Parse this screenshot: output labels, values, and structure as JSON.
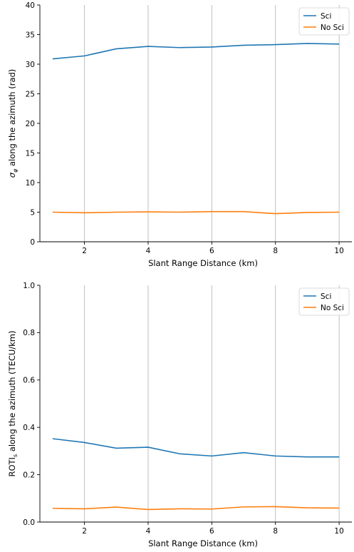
{
  "chart_data": [
    {
      "type": "line",
      "title": "",
      "xlabel": "Slant Range Distance (km)",
      "ylabel_prefix": "σ",
      "ylabel_subscript": "φ",
      "ylabel_rest": " along the azimuth (rad)",
      "xlim": [
        0.6,
        10.4
      ],
      "ylim": [
        0,
        40
      ],
      "xticks": [
        2,
        4,
        6,
        8,
        10
      ],
      "yticks": [
        0,
        5,
        10,
        15,
        20,
        25,
        30,
        35,
        40
      ],
      "grid": "x",
      "legend_position": "top-right",
      "x": [
        1,
        2,
        3,
        4,
        5,
        6,
        7,
        8,
        9,
        10
      ],
      "series": [
        {
          "name": "Sci",
          "color": "#1f77b4",
          "values": [
            30.9,
            31.4,
            32.6,
            33.0,
            32.8,
            32.9,
            33.2,
            33.3,
            33.5,
            33.4
          ]
        },
        {
          "name": "No Sci",
          "color": "#ff7f0e",
          "values": [
            5.0,
            4.9,
            5.0,
            5.05,
            5.0,
            5.1,
            5.1,
            4.75,
            4.95,
            5.0
          ]
        }
      ]
    },
    {
      "type": "line",
      "title": "",
      "xlabel": "Slant Range Distance (km)",
      "ylabel_prefix": "ROTI",
      "ylabel_subscript": "s",
      "ylabel_rest": " along the azimuth (TECU/km)",
      "xlim": [
        0.6,
        10.4
      ],
      "ylim": [
        0,
        1
      ],
      "xticks": [
        2,
        4,
        6,
        8,
        10
      ],
      "yticks": [
        0.0,
        0.2,
        0.4,
        0.6,
        0.8,
        1.0
      ],
      "ytick_labels": [
        "0.0",
        "0.2",
        "0.4",
        "0.6",
        "0.8",
        "1.0"
      ],
      "grid": "x",
      "legend_position": "top-right",
      "x": [
        1,
        2,
        3,
        4,
        5,
        6,
        7,
        8,
        9,
        10
      ],
      "series": [
        {
          "name": "Sci",
          "color": "#1f77b4",
          "values": [
            0.352,
            0.336,
            0.312,
            0.316,
            0.288,
            0.279,
            0.293,
            0.279,
            0.275,
            0.275
          ]
        },
        {
          "name": "No Sci",
          "color": "#ff7f0e",
          "values": [
            0.058,
            0.056,
            0.063,
            0.053,
            0.056,
            0.055,
            0.064,
            0.065,
            0.06,
            0.059
          ]
        }
      ]
    }
  ]
}
